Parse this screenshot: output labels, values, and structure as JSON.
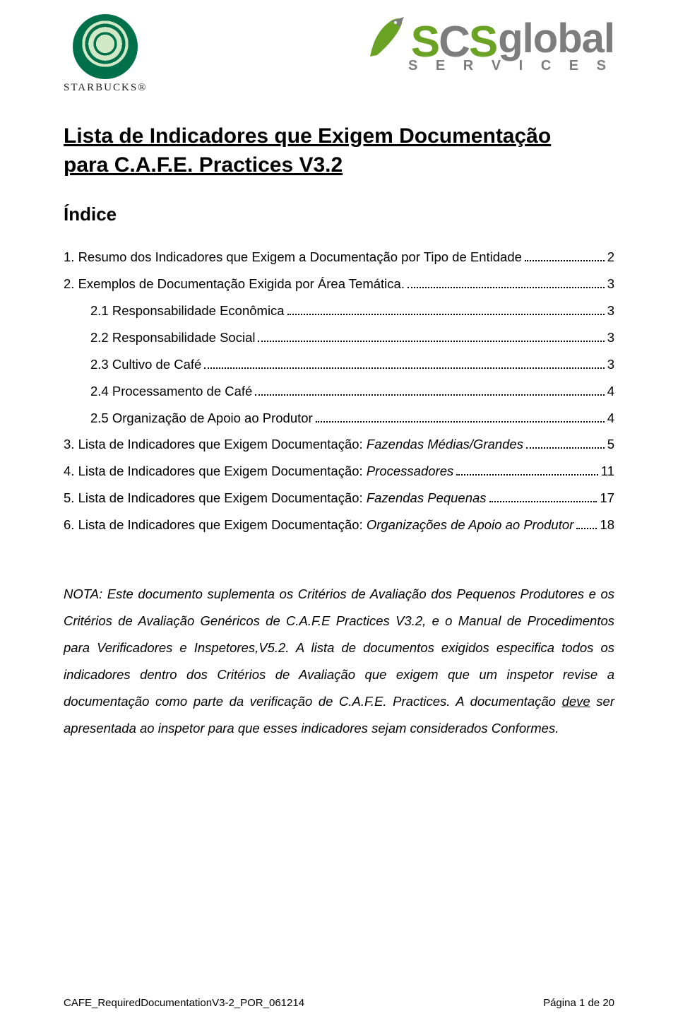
{
  "logos": {
    "starbucks_word": "STARBUCKS®",
    "scs_services": "S E R V I C E S"
  },
  "title_line1": "Lista de Indicadores que Exigem Documentação",
  "title_line2": "para C.A.F.E. Practices V3.2",
  "indice_heading": "Índice",
  "toc": [
    {
      "indent": 0,
      "text": "1. Resumo dos Indicadores que Exigem a Documentação por Tipo de Entidade",
      "italic_tail": "",
      "page": "2"
    },
    {
      "indent": 0,
      "text": "2. Exemplos de Documentação Exigida por Área Temática. ",
      "italic_tail": "",
      "page": "3"
    },
    {
      "indent": 1,
      "text": "2.1 Responsabilidade Econômica",
      "italic_tail": "",
      "page": "3"
    },
    {
      "indent": 1,
      "text": "2.2 Responsabilidade Social",
      "italic_tail": "",
      "page": "3"
    },
    {
      "indent": 1,
      "text": "2.3 Cultivo de Café",
      "italic_tail": "",
      "page": "3"
    },
    {
      "indent": 1,
      "text": "2.4 Processamento de Café",
      "italic_tail": "",
      "page": "4"
    },
    {
      "indent": 1,
      "text": "2.5 Organização de Apoio ao Produtor",
      "italic_tail": "",
      "page": "4"
    },
    {
      "indent": 0,
      "text": "3. Lista de Indicadores que Exigem Documentação:  ",
      "italic_tail": "Fazendas Médias/Grandes",
      "page": "5"
    },
    {
      "indent": 0,
      "text": "4. Lista de Indicadores que Exigem Documentação:  ",
      "italic_tail": "Processadores",
      "page": "11"
    },
    {
      "indent": 0,
      "text": "5. Lista de Indicadores que Exigem Documentação:  ",
      "italic_tail": "Fazendas Pequenas",
      "page": "17"
    },
    {
      "indent": 0,
      "text": "6. Lista de Indicadores que Exigem Documentação:  ",
      "italic_tail": "Organizações de Apoio ao Produtor",
      "page": "18"
    }
  ],
  "note": {
    "prefix": "NOTA: Este documento suplementa os Critérios de Avaliação dos Pequenos Produtores e os Critérios de Avaliação Genéricos de C.A.F.E Practices V3.2, e o Manual de Procedimentos para Verificadores e Inspetores,V5.2. A lista de documentos exigidos especifica todos os indicadores dentro dos Critérios de Avaliação que exigem que um inspetor revise a documentação como parte da verificação de C.A.F.E. Practices.  A documentação ",
    "deve": "deve",
    "suffix": " ser apresentada ao inspetor para que esses indicadores sejam considerados Conformes."
  },
  "footer": {
    "left": "CAFE_RequiredDocumentationV3-2_POR_061214",
    "right": "Página 1 de 20"
  },
  "colors": {
    "starbucks_green": "#00704a",
    "scs_green": "#6aa224",
    "scs_grey": "#7d7d7d",
    "text": "#000000",
    "background": "#ffffff"
  }
}
